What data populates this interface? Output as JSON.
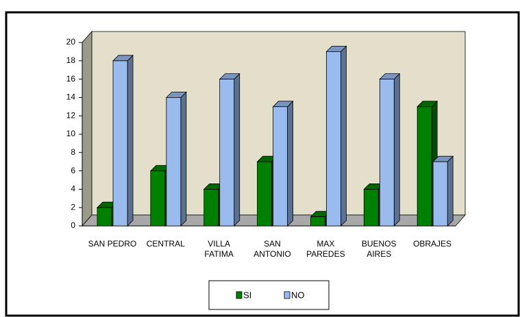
{
  "chart_data": {
    "type": "bar3d",
    "categories": [
      "SAN PEDRO",
      "CENTRAL",
      "VILLA FATIMA",
      "SAN ANTONIO",
      "MAX PAREDES",
      "BUENOS AIRES",
      "OBRAJES"
    ],
    "series": [
      {
        "name": "SI",
        "color": "#008000",
        "values": [
          2,
          6,
          4,
          7,
          1,
          4,
          13
        ]
      },
      {
        "name": "NO",
        "color": "#99bbee",
        "values": [
          18,
          14,
          16,
          13,
          19,
          16,
          7
        ]
      }
    ],
    "ylim": [
      0,
      20
    ],
    "yticks": [
      0,
      2,
      4,
      6,
      8,
      10,
      12,
      14,
      16,
      18,
      20
    ]
  }
}
